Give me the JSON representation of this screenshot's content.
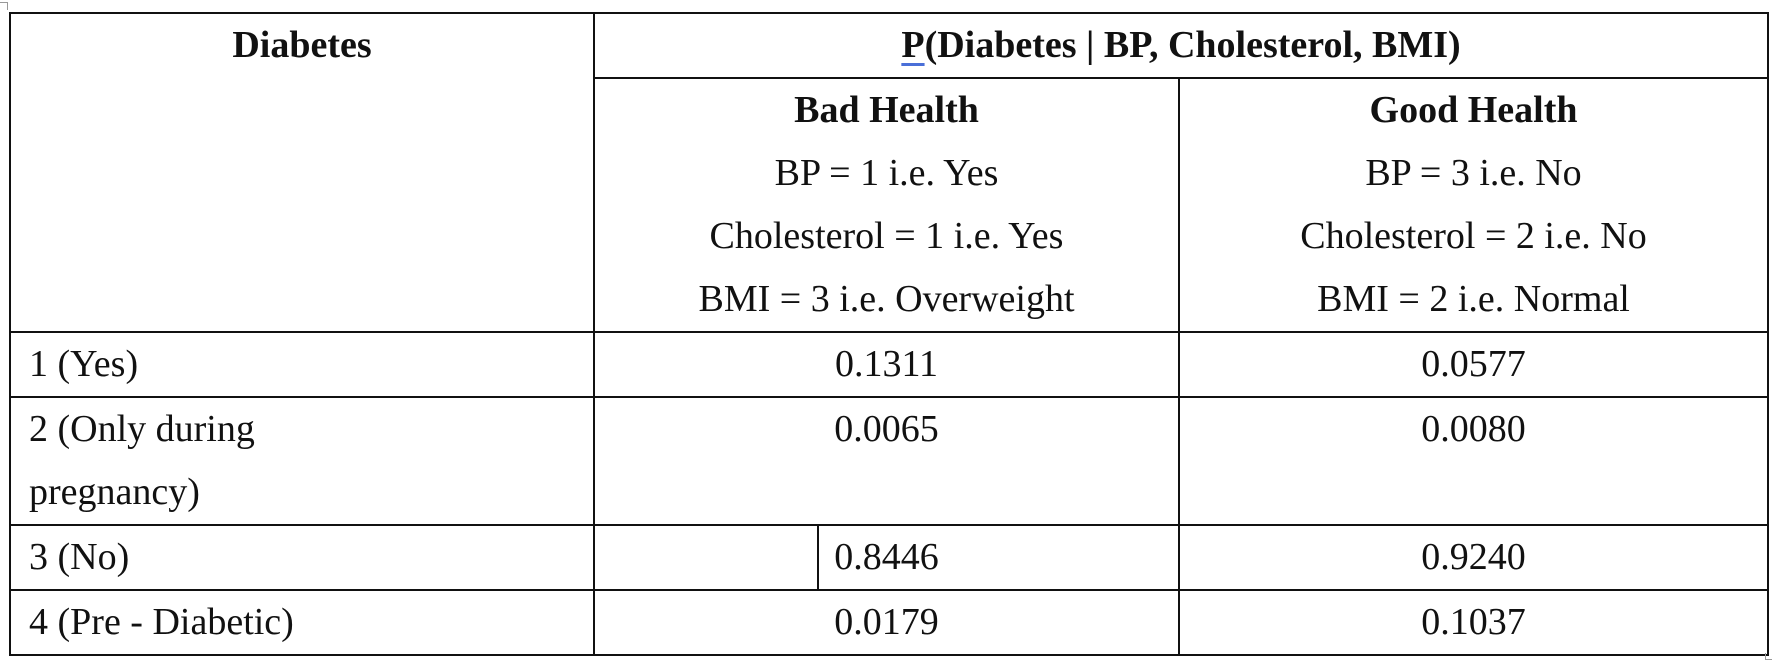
{
  "table": {
    "col1_header": "Diabetes",
    "main_header_prefix": "P",
    "main_header_rest": "(Diabetes | BP, Cholesterol, BMI)",
    "groups": [
      {
        "title": "Bad Health",
        "lines": [
          "BP = 1 i.e. Yes",
          "Cholesterol = 1 i.e. Yes",
          "BMI = 3 i.e. Overweight"
        ]
      },
      {
        "title": "Good Health",
        "lines": [
          "BP = 3 i.e. No",
          "Cholesterol = 2 i.e. No",
          "BMI = 2 i.e. Normal"
        ]
      }
    ],
    "rows": [
      {
        "label": "1 (Yes)",
        "bad": "0.1311",
        "good": "0.0577"
      },
      {
        "label": "2 (Only during pregnancy)",
        "bad": "0.0065",
        "good": "0.0080"
      },
      {
        "label": "3 (No)",
        "bad": "0.8446",
        "good": "0.9240"
      },
      {
        "label": "4 (Pre - Diabetic)",
        "bad": "0.0179",
        "good": "0.1037"
      }
    ]
  }
}
